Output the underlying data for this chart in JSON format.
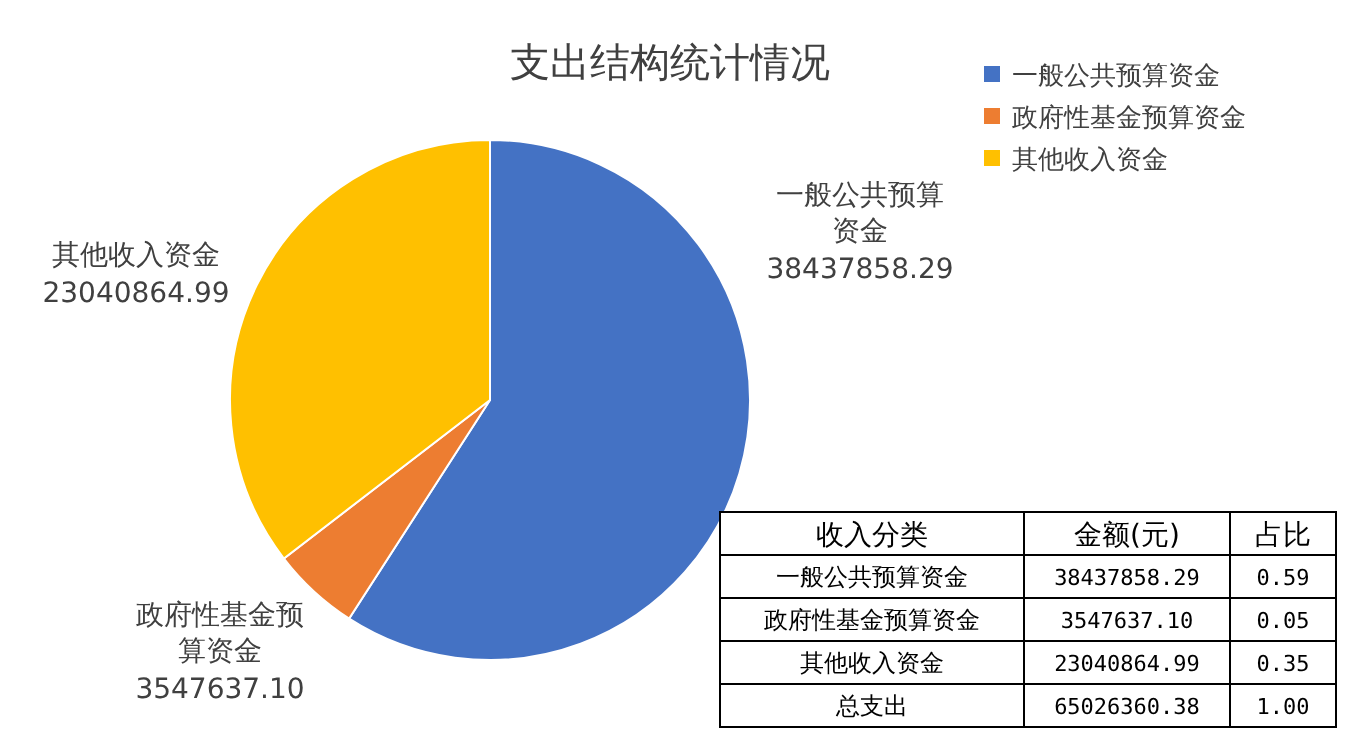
{
  "chart_data": {
    "type": "pie",
    "title": "支出结构统计情况",
    "categories": [
      "一般公共预算资金",
      "政府性基金预算资金",
      "其他收入资金"
    ],
    "values": [
      38437858.29,
      3547637.1,
      23040864.99
    ],
    "value_labels": [
      "38437858.29",
      "3547637.10",
      "23040864.99"
    ],
    "colors": [
      "#4472c4",
      "#ed7d31",
      "#ffc000"
    ],
    "legend": "top right",
    "annotations": [
      "收入分类",
      "金额(元)",
      "占比",
      "0.59",
      "0.05",
      "0.35",
      "总支出",
      "65026360.38",
      "1.00"
    ]
  }
}
